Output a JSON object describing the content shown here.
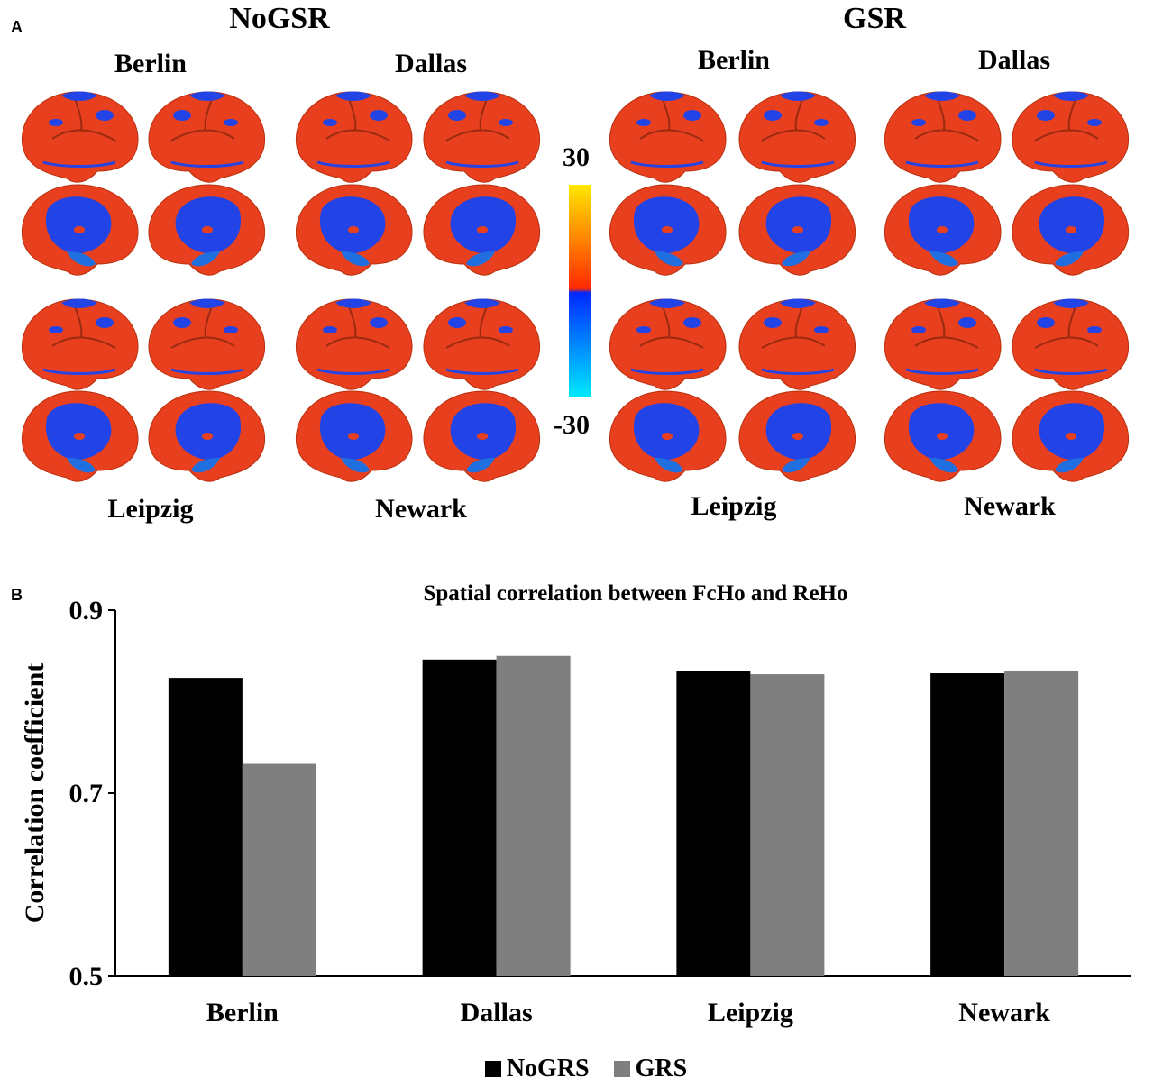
{
  "panelA": {
    "letter": "A",
    "conditions": [
      {
        "title": "NoGSR",
        "sites_top": [
          "Berlin",
          "Dallas"
        ],
        "sites_bottom": [
          "Leipzig",
          "Newark"
        ]
      },
      {
        "title": "GSR",
        "sites_top": [
          "Berlin",
          "Dallas"
        ],
        "sites_bottom": [
          "Leipzig",
          "Newark"
        ]
      }
    ],
    "colorbar": {
      "max_label": "30",
      "min_label": "-30",
      "colors": {
        "top": "#ffe800",
        "mid_hi": "#ff2a00",
        "mid_lo": "#0028ff",
        "bottom": "#00e8ff"
      }
    },
    "brain_colors": {
      "positive": "#e8401e",
      "negative": "#2244e6"
    }
  },
  "panelB": {
    "letter": "B",
    "legend": [
      {
        "label": "NoGRS",
        "color": "#000000"
      },
      {
        "label": "GRS",
        "color": "#7f7f7f"
      }
    ]
  },
  "chart_data": {
    "type": "bar",
    "title": "Spatial correlation between FcHo and ReHo",
    "xlabel": "",
    "ylabel": "Correlation coefficient",
    "categories": [
      "Berlin",
      "Dallas",
      "Leipzig",
      "Newark"
    ],
    "series": [
      {
        "name": "NoGRS",
        "values": [
          0.826,
          0.846,
          0.833,
          0.831
        ],
        "color": "#000000"
      },
      {
        "name": "GRS",
        "values": [
          0.732,
          0.85,
          0.83,
          0.834
        ],
        "color": "#7f7f7f"
      }
    ],
    "ylim": [
      0.5,
      0.9
    ],
    "yticks": [
      "0.5",
      "0.7",
      "0.9"
    ],
    "grid": false,
    "legend_position": "bottom"
  }
}
